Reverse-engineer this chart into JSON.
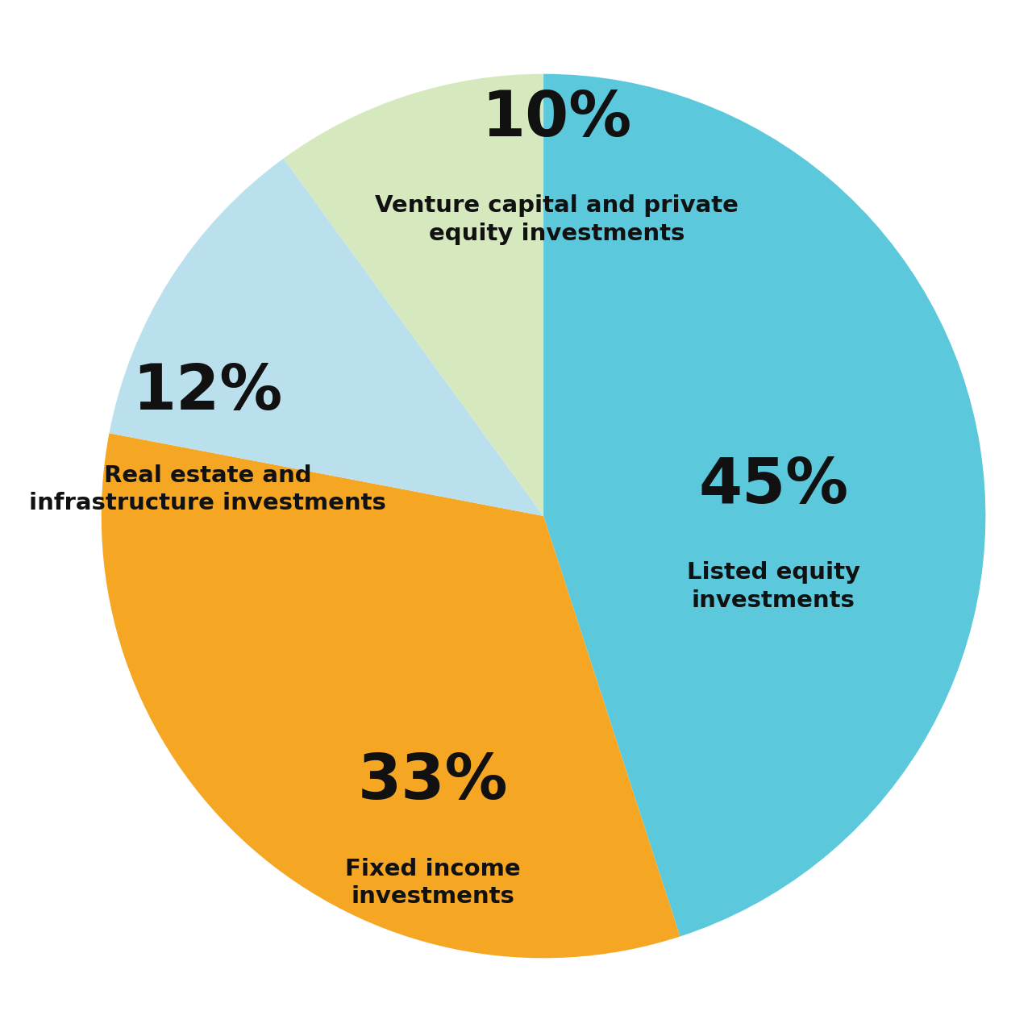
{
  "slices": [
    {
      "label": "Listed equity\ninvestments",
      "pct": 45,
      "color": "#5BC8DC",
      "pct_label": "45%"
    },
    {
      "label": "Fixed income\ninvestments",
      "pct": 33,
      "color": "#F5A623",
      "pct_label": "33%"
    },
    {
      "label": "Real estate and\ninfrastructure investments",
      "pct": 12,
      "color": "#BAE0EE",
      "pct_label": "12%"
    },
    {
      "label": "Venture capital and private\nequity investments",
      "pct": 10,
      "color": "#D6E8BE",
      "pct_label": "10%"
    }
  ],
  "background_color": "#ffffff",
  "text_color": "#111111",
  "pct_fontsize": 56,
  "label_fontsize": 21,
  "startangle": 90
}
